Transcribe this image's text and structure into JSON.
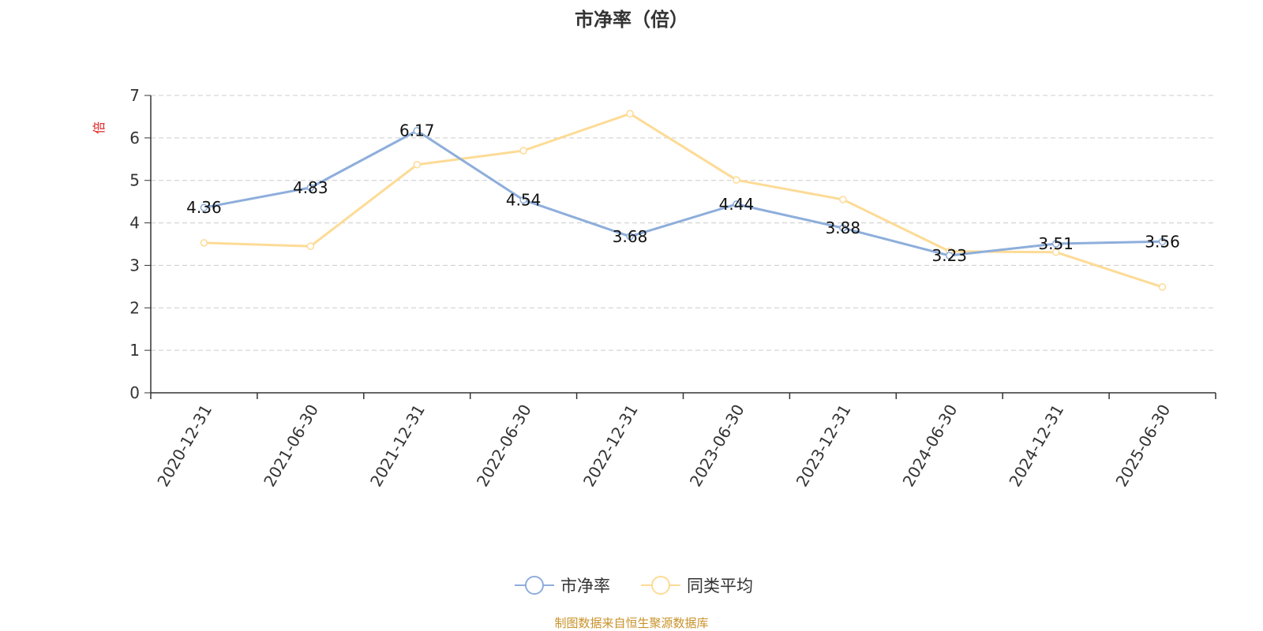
{
  "chart_data": {
    "type": "line",
    "title": "市净率（倍）",
    "ylabel": "倍",
    "xlabel": "",
    "ylim": [
      0,
      7
    ],
    "yticks": [
      0,
      1,
      2,
      3,
      4,
      5,
      6,
      7
    ],
    "grid": true,
    "legend_position": "bottom",
    "categories": [
      "2020-12-31",
      "2021-06-30",
      "2021-12-31",
      "2022-06-30",
      "2022-12-31",
      "2023-06-30",
      "2023-12-31",
      "2024-06-30",
      "2024-12-31",
      "2025-06-30"
    ],
    "series": [
      {
        "name": "市净率",
        "color": "#8eaedb",
        "show_labels": true,
        "values": [
          4.36,
          4.83,
          6.17,
          4.54,
          3.68,
          4.44,
          3.88,
          3.23,
          3.51,
          3.56
        ],
        "labels": [
          "4.36",
          "4.83",
          "6.17",
          "4.54",
          "3.68",
          "4.44",
          "3.88",
          "3.23",
          "3.51",
          "3.56"
        ]
      },
      {
        "name": "同类平均",
        "color": "#fddb96",
        "show_labels": false,
        "values": [
          3.53,
          3.45,
          5.37,
          5.7,
          6.57,
          5.01,
          4.55,
          3.33,
          3.31,
          2.49
        ]
      }
    ],
    "source": "制图数据来自恒生聚源数据库"
  }
}
